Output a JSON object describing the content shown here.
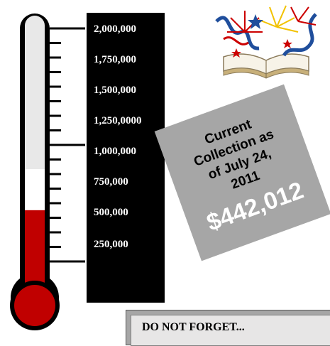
{
  "thermometer": {
    "scale_labels": [
      "2,000,000",
      "1,750,000",
      "1,500,000",
      "1,250,0000",
      "1,000,000",
      "750,000",
      "500,000",
      "250,000"
    ],
    "fill_fraction": 0.22,
    "fill_color": "#c00000",
    "tube_color": "#e8e8e8",
    "outline_color": "#000000"
  },
  "collection_card": {
    "label_lines": [
      "Current",
      "Collection as",
      "of July 24,",
      "2011"
    ],
    "amount": "$442,012",
    "background_color": "#a6a6a6"
  },
  "notice": {
    "text": "DO NOT FORGET..."
  },
  "decoration": {
    "icon": "fireworks-book-icon",
    "colors": [
      "#cc0000",
      "#1f4e9c",
      "#f2c200"
    ]
  }
}
